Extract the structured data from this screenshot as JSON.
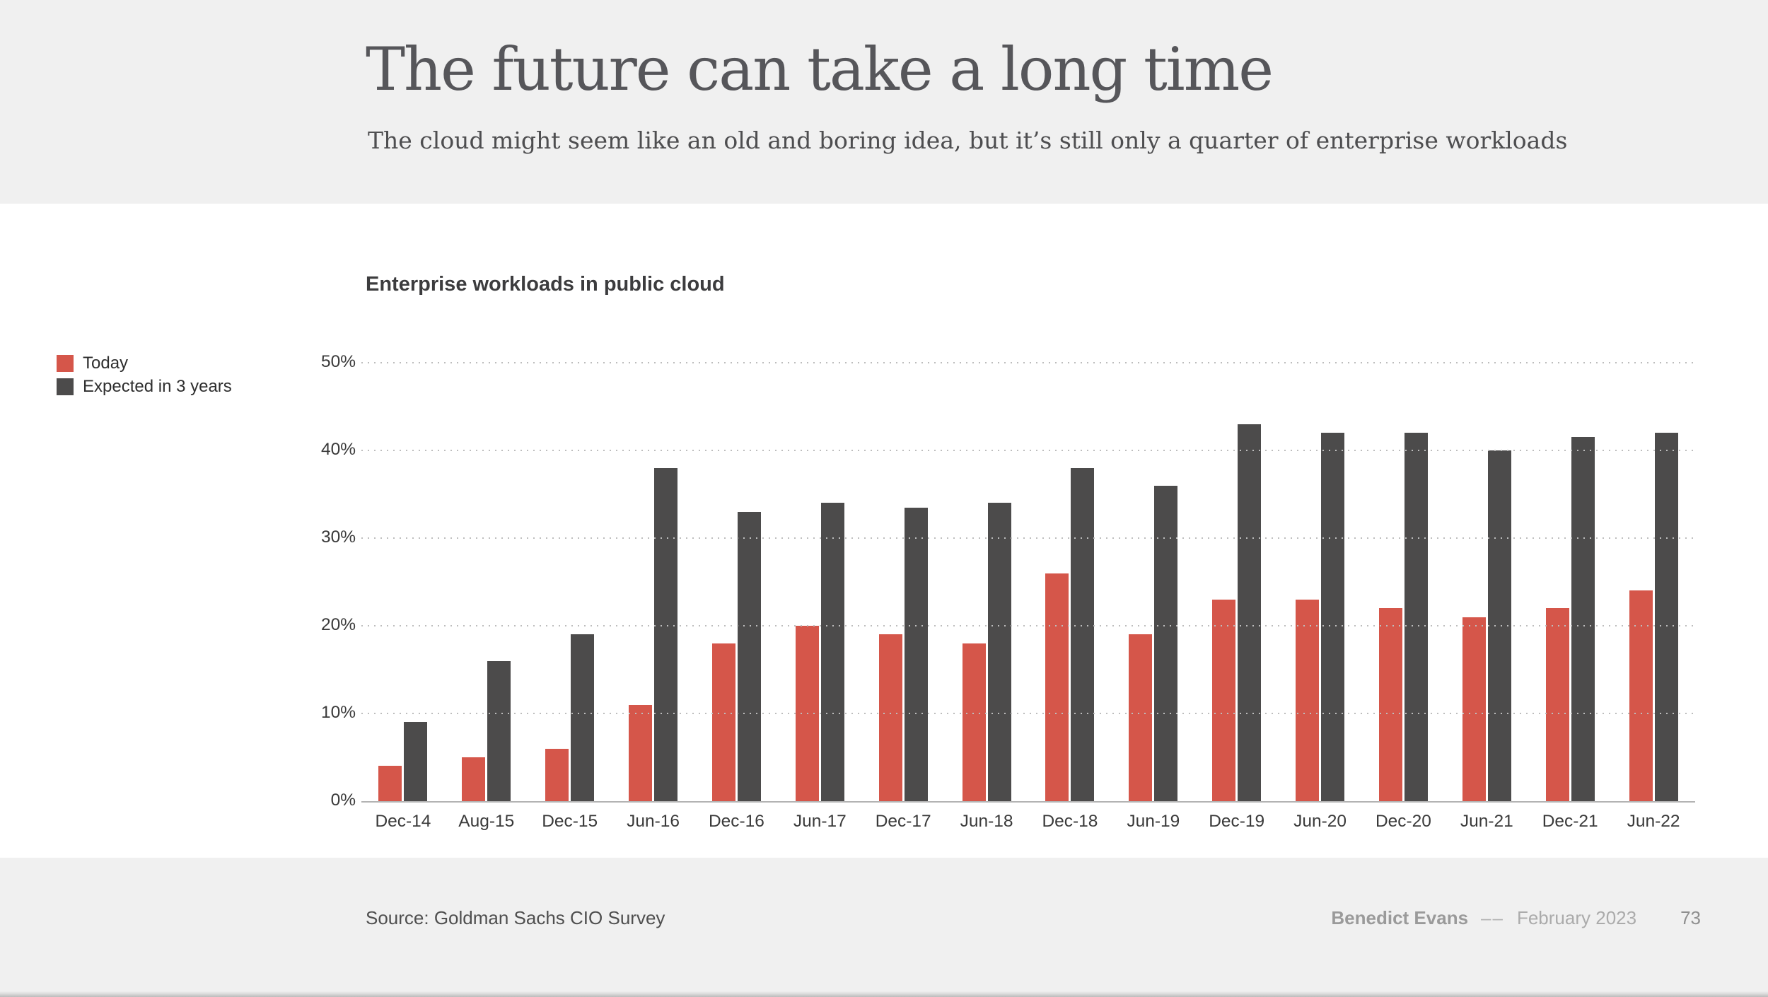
{
  "slide": {
    "title": "The future can take a long time",
    "subtitle": "The cloud might seem like an old and boring idea, but it’s still only a quarter of enterprise workloads"
  },
  "footer": {
    "source": "Source: Goldman Sachs CIO Survey",
    "author": "Benedict Evans",
    "separator": "––",
    "date": "February 2023",
    "page": "73"
  },
  "colors": {
    "today": "#D5564A",
    "expected": "#4C4B4B",
    "band": "#F0F0F0",
    "grid": "#BDBDBD",
    "axis": "#B3B3B3"
  },
  "chart_data": {
    "type": "bar",
    "title": "Enterprise workloads in public cloud",
    "categories": [
      "Dec-14",
      "Aug-15",
      "Dec-15",
      "Jun-16",
      "Dec-16",
      "Jun-17",
      "Dec-17",
      "Jun-18",
      "Dec-18",
      "Jun-19",
      "Dec-19",
      "Jun-20",
      "Dec-20",
      "Jun-21",
      "Dec-21",
      "Jun-22"
    ],
    "series": [
      {
        "name": "Today",
        "color_key": "today",
        "values": [
          4,
          5,
          6,
          11,
          18,
          20,
          19,
          18,
          26,
          19,
          23,
          23,
          22,
          21,
          22,
          24
        ]
      },
      {
        "name": "Expected in 3 years",
        "color_key": "expected",
        "values": [
          9,
          16,
          19,
          38,
          33,
          34,
          33.5,
          34,
          38,
          36,
          43,
          42,
          42,
          40,
          41.5,
          42
        ]
      }
    ],
    "ylim": [
      0,
      50
    ],
    "ticks": [
      {
        "value": 0,
        "label": "0%"
      },
      {
        "value": 10,
        "label": "10%"
      },
      {
        "value": 20,
        "label": "20%"
      },
      {
        "value": 30,
        "label": "30%"
      },
      {
        "value": 40,
        "label": "40%"
      },
      {
        "value": 50,
        "label": "50%"
      }
    ],
    "xlabel": "",
    "ylabel": "",
    "grid": "dotted horizontal",
    "legend_position": "left"
  }
}
